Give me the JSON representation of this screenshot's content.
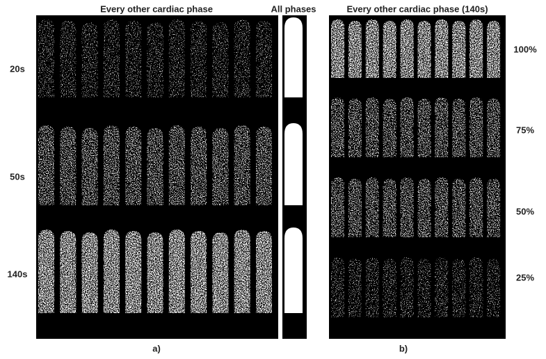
{
  "panel_a": {
    "title": "Every other cardiac phase",
    "all_phases_label": "All phases",
    "rows": [
      "20s",
      "50s",
      "140s"
    ],
    "caption": "a)"
  },
  "panel_b": {
    "title": "Every other cardiac phase (140s)",
    "rows": [
      "100%",
      "75%",
      "50%",
      "25%"
    ],
    "caption": "b)"
  }
}
